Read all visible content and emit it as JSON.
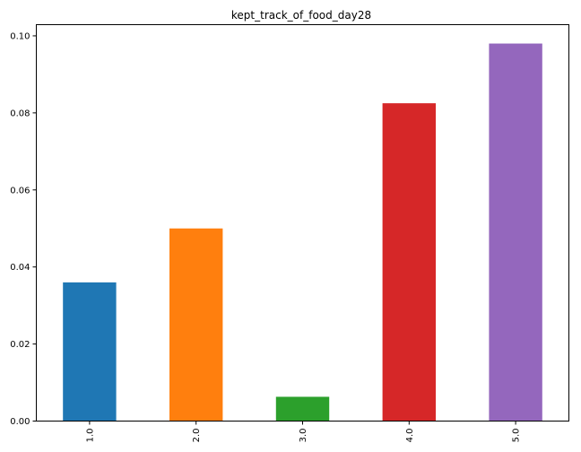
{
  "chart_data": {
    "type": "bar",
    "title": "kept_track_of_food_day28",
    "xlabel": "",
    "ylabel": "",
    "categories": [
      "1.0",
      "2.0",
      "3.0",
      "4.0",
      "5.0"
    ],
    "values": [
      0.036,
      0.05,
      0.0063,
      0.0825,
      0.098
    ],
    "colors": [
      "#1f77b4",
      "#ff7f0e",
      "#2ca02c",
      "#d62728",
      "#9467bd"
    ],
    "ylim": [
      0,
      0.1029
    ],
    "yticks": [
      0.0,
      0.02,
      0.04,
      0.06,
      0.08,
      0.1
    ],
    "ytick_labels": [
      "0.00",
      "0.02",
      "0.04",
      "0.06",
      "0.08",
      "0.10"
    ],
    "grid": false,
    "legend": "none"
  }
}
